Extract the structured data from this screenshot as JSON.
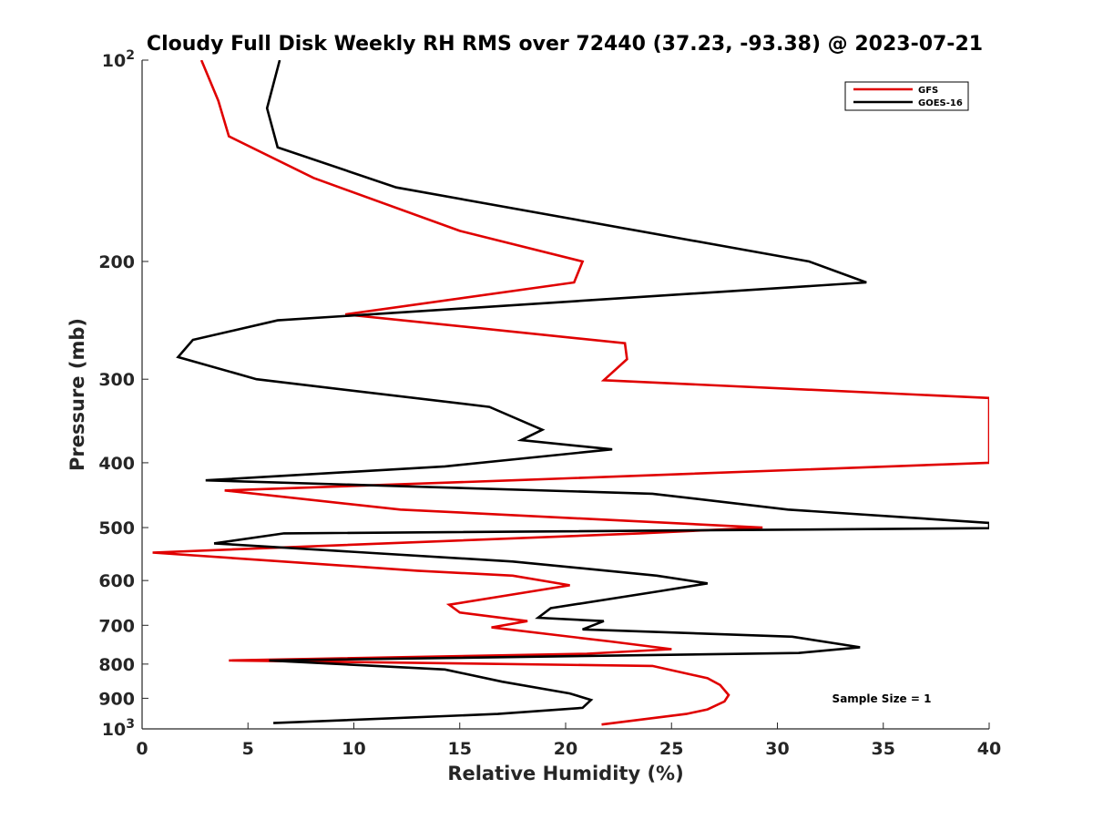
{
  "chart_data": {
    "type": "line",
    "title": "Cloudy Full Disk Weekly RH RMS over 72440 (37.23, -93.38) @ 2023-07-21",
    "xlabel": "Relative Humidity (%)",
    "ylabel": "Pressure (mb)",
    "xlim": [
      0,
      40
    ],
    "ylim": [
      100,
      1000
    ],
    "y_scale": "log",
    "y_reversed": true,
    "grid": false,
    "legend_position": "top-right",
    "x_ticks": [
      "0",
      "5",
      "10",
      "15",
      "20",
      "25",
      "30",
      "35",
      "40"
    ],
    "y_ticks": [
      {
        "value": 100,
        "base": "10",
        "exp": "2"
      },
      {
        "value": 200,
        "label": "200"
      },
      {
        "value": 300,
        "label": "300"
      },
      {
        "value": 400,
        "label": "400"
      },
      {
        "value": 500,
        "label": "500"
      },
      {
        "value": 600,
        "label": "600"
      },
      {
        "value": 700,
        "label": "700"
      },
      {
        "value": 800,
        "label": "800"
      },
      {
        "value": 900,
        "label": "900"
      },
      {
        "value": 1000,
        "base": "10",
        "exp": "3"
      }
    ],
    "annotation": "Sample Size = 1",
    "series": [
      {
        "name": "GFS",
        "color": "#e00000",
        "points": [
          [
            2.8,
            100
          ],
          [
            3.6,
            115
          ],
          [
            4.1,
            130
          ],
          [
            8.1,
            150
          ],
          [
            15,
            180
          ],
          [
            20.8,
            200
          ],
          [
            20.4,
            215
          ],
          [
            9.6,
            240
          ],
          [
            22.8,
            265
          ],
          [
            22.9,
            280
          ],
          [
            21.8,
            301
          ],
          [
            40,
            320
          ],
          [
            40,
            400
          ],
          [
            17.5,
            425
          ],
          [
            3.9,
            440
          ],
          [
            12.2,
            470
          ],
          [
            29.3,
            500
          ],
          [
            23.5,
            510
          ],
          [
            0.5,
            545
          ],
          [
            13,
            580
          ],
          [
            17.5,
            590
          ],
          [
            20.2,
            610
          ],
          [
            14.5,
            652
          ],
          [
            15,
            670
          ],
          [
            18.2,
            690
          ],
          [
            16.5,
            705
          ],
          [
            22.1,
            740
          ],
          [
            25,
            760
          ],
          [
            21,
            772
          ],
          [
            4.1,
            790
          ],
          [
            24.1,
            805
          ],
          [
            26.7,
            840
          ],
          [
            27.3,
            860
          ],
          [
            27.7,
            890
          ],
          [
            27.5,
            910
          ],
          [
            26.7,
            935
          ],
          [
            25.7,
            950
          ],
          [
            21.7,
            985
          ]
        ]
      },
      {
        "name": "GOES-16",
        "color": "#000000",
        "points": [
          [
            6.5,
            100
          ],
          [
            5.9,
            118
          ],
          [
            6.4,
            135
          ],
          [
            12,
            155
          ],
          [
            31.5,
            200
          ],
          [
            34.2,
            215
          ],
          [
            6.4,
            245
          ],
          [
            2.4,
            262
          ],
          [
            1.7,
            278
          ],
          [
            5.4,
            300
          ],
          [
            16.4,
            330
          ],
          [
            18.9,
            357
          ],
          [
            17.9,
            370
          ],
          [
            22.2,
            382
          ],
          [
            14.3,
            405
          ],
          [
            3,
            425
          ],
          [
            24.1,
            445
          ],
          [
            30.5,
            470
          ],
          [
            40,
            492
          ],
          [
            40,
            501
          ],
          [
            6.7,
            510
          ],
          [
            3.4,
            528
          ],
          [
            17.5,
            562
          ],
          [
            24.3,
            590
          ],
          [
            26.7,
            606
          ],
          [
            24.5,
            622
          ],
          [
            19.3,
            660
          ],
          [
            18.7,
            682
          ],
          [
            21.8,
            690
          ],
          [
            20.8,
            710
          ],
          [
            30.7,
            728
          ],
          [
            33.9,
            755
          ],
          [
            31,
            770
          ],
          [
            6,
            790
          ],
          [
            14.3,
            815
          ],
          [
            17,
            850
          ],
          [
            20.2,
            885
          ],
          [
            21.2,
            905
          ],
          [
            20.8,
            930
          ],
          [
            16.8,
            950
          ],
          [
            6.2,
            980
          ]
        ]
      }
    ]
  }
}
